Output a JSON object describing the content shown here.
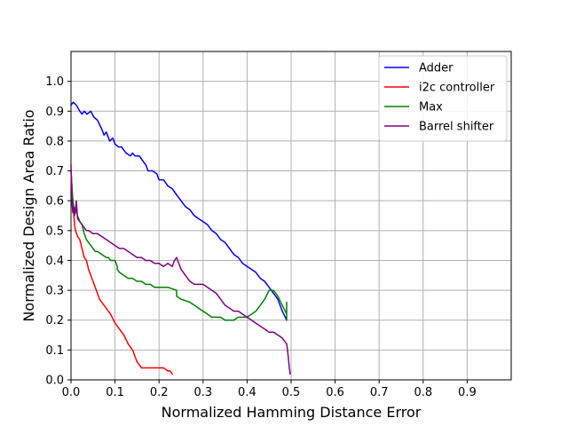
{
  "chart_data": {
    "type": "line",
    "title": "",
    "xlabel": "Normalized Hamming Distance Error",
    "ylabel": "Normalized Design Area Ratio",
    "xlim": [
      0,
      1.0
    ],
    "ylim": [
      0,
      1.1
    ],
    "xticks": [
      0.0,
      0.1,
      0.2,
      0.3,
      0.4,
      0.5,
      0.6,
      0.7,
      0.8,
      0.9
    ],
    "xtick_labels": [
      "0.0",
      "0.1",
      "0.2",
      "0.3",
      "0.4",
      "0.5",
      "0.6",
      "0.7",
      "0.8",
      "0.9"
    ],
    "yticks": [
      0.0,
      0.1,
      0.2,
      0.3,
      0.4,
      0.5,
      0.6,
      0.7,
      0.8,
      0.9,
      1.0
    ],
    "ytick_labels": [
      "0.0",
      "0.1",
      "0.2",
      "0.3",
      "0.4",
      "0.5",
      "0.6",
      "0.7",
      "0.8",
      "0.9",
      "1.0"
    ],
    "grid": true,
    "legend_position": "top-right",
    "series": [
      {
        "name": "Adder",
        "color": "#0000ff",
        "x": [
          0.0,
          0.005,
          0.012,
          0.02,
          0.025,
          0.03,
          0.036,
          0.045,
          0.052,
          0.06,
          0.07,
          0.075,
          0.08,
          0.088,
          0.095,
          0.1,
          0.108,
          0.115,
          0.125,
          0.135,
          0.14,
          0.145,
          0.155,
          0.165,
          0.17,
          0.175,
          0.185,
          0.195,
          0.2,
          0.21,
          0.22,
          0.23,
          0.24,
          0.25,
          0.26,
          0.27,
          0.28,
          0.29,
          0.3,
          0.31,
          0.32,
          0.33,
          0.34,
          0.35,
          0.36,
          0.37,
          0.38,
          0.39,
          0.4,
          0.41,
          0.42,
          0.43,
          0.44,
          0.45,
          0.46,
          0.47,
          0.48,
          0.49
        ],
        "y": [
          0.92,
          0.93,
          0.92,
          0.9,
          0.89,
          0.9,
          0.89,
          0.9,
          0.88,
          0.87,
          0.84,
          0.82,
          0.83,
          0.8,
          0.81,
          0.79,
          0.78,
          0.78,
          0.76,
          0.75,
          0.76,
          0.75,
          0.75,
          0.73,
          0.72,
          0.7,
          0.7,
          0.69,
          0.67,
          0.67,
          0.65,
          0.64,
          0.62,
          0.6,
          0.58,
          0.57,
          0.55,
          0.54,
          0.53,
          0.52,
          0.5,
          0.49,
          0.47,
          0.46,
          0.44,
          0.42,
          0.41,
          0.39,
          0.38,
          0.37,
          0.36,
          0.34,
          0.33,
          0.31,
          0.29,
          0.27,
          0.23,
          0.2
        ]
      },
      {
        "name": "i2c controller",
        "color": "#ff0000",
        "x": [
          0.0,
          0.002,
          0.004,
          0.006,
          0.008,
          0.01,
          0.015,
          0.02,
          0.025,
          0.03,
          0.035,
          0.04,
          0.045,
          0.05,
          0.055,
          0.06,
          0.065,
          0.07,
          0.08,
          0.09,
          0.1,
          0.11,
          0.12,
          0.13,
          0.14,
          0.145,
          0.15,
          0.155,
          0.16,
          0.17,
          0.18,
          0.19,
          0.2,
          0.21,
          0.22,
          0.225,
          0.23
        ],
        "y": [
          0.7,
          0.65,
          0.6,
          0.56,
          0.52,
          0.5,
          0.48,
          0.47,
          0.44,
          0.41,
          0.4,
          0.37,
          0.35,
          0.33,
          0.31,
          0.29,
          0.27,
          0.26,
          0.24,
          0.22,
          0.19,
          0.17,
          0.15,
          0.12,
          0.1,
          0.08,
          0.06,
          0.05,
          0.04,
          0.04,
          0.04,
          0.04,
          0.04,
          0.04,
          0.03,
          0.03,
          0.02
        ]
      },
      {
        "name": "Max",
        "color": "#008000",
        "x": [
          0.0,
          0.003,
          0.006,
          0.01,
          0.015,
          0.02,
          0.025,
          0.03,
          0.035,
          0.04,
          0.045,
          0.05,
          0.055,
          0.06,
          0.07,
          0.08,
          0.085,
          0.09,
          0.095,
          0.1,
          0.105,
          0.105,
          0.11,
          0.12,
          0.13,
          0.14,
          0.15,
          0.16,
          0.17,
          0.18,
          0.19,
          0.2,
          0.21,
          0.22,
          0.24,
          0.24,
          0.25,
          0.27,
          0.28,
          0.29,
          0.3,
          0.31,
          0.32,
          0.33,
          0.34,
          0.35,
          0.36,
          0.37,
          0.38,
          0.39,
          0.4,
          0.41,
          0.42,
          0.43,
          0.44,
          0.45,
          0.46,
          0.47,
          0.48,
          0.49,
          0.49,
          0.49
        ],
        "y": [
          0.7,
          0.62,
          0.58,
          0.57,
          0.55,
          0.53,
          0.52,
          0.49,
          0.47,
          0.46,
          0.45,
          0.44,
          0.43,
          0.43,
          0.42,
          0.41,
          0.41,
          0.4,
          0.4,
          0.4,
          0.38,
          0.37,
          0.36,
          0.35,
          0.34,
          0.34,
          0.33,
          0.33,
          0.32,
          0.32,
          0.31,
          0.31,
          0.31,
          0.31,
          0.3,
          0.28,
          0.27,
          0.26,
          0.25,
          0.24,
          0.23,
          0.22,
          0.21,
          0.21,
          0.21,
          0.2,
          0.2,
          0.2,
          0.21,
          0.21,
          0.21,
          0.22,
          0.23,
          0.25,
          0.27,
          0.3,
          0.3,
          0.28,
          0.25,
          0.22,
          0.26,
          0.2
        ]
      },
      {
        "name": "Barrel shifter",
        "color": "#800080",
        "x": [
          0.0,
          0.002,
          0.004,
          0.006,
          0.008,
          0.01,
          0.012,
          0.015,
          0.02,
          0.025,
          0.03,
          0.035,
          0.04,
          0.05,
          0.06,
          0.07,
          0.08,
          0.09,
          0.1,
          0.11,
          0.12,
          0.13,
          0.14,
          0.15,
          0.16,
          0.17,
          0.18,
          0.19,
          0.2,
          0.21,
          0.22,
          0.23,
          0.235,
          0.24,
          0.25,
          0.26,
          0.27,
          0.28,
          0.29,
          0.3,
          0.31,
          0.32,
          0.33,
          0.34,
          0.35,
          0.36,
          0.37,
          0.38,
          0.39,
          0.4,
          0.41,
          0.42,
          0.43,
          0.44,
          0.45,
          0.46,
          0.47,
          0.48,
          0.485,
          0.49,
          0.492,
          0.494,
          0.496,
          0.498
        ],
        "y": [
          0.72,
          0.6,
          0.56,
          0.58,
          0.55,
          0.57,
          0.6,
          0.54,
          0.53,
          0.52,
          0.51,
          0.5,
          0.5,
          0.49,
          0.49,
          0.48,
          0.47,
          0.46,
          0.45,
          0.44,
          0.44,
          0.43,
          0.42,
          0.41,
          0.41,
          0.4,
          0.4,
          0.39,
          0.39,
          0.38,
          0.39,
          0.38,
          0.4,
          0.41,
          0.37,
          0.35,
          0.33,
          0.32,
          0.32,
          0.32,
          0.31,
          0.3,
          0.29,
          0.27,
          0.25,
          0.24,
          0.23,
          0.23,
          0.22,
          0.21,
          0.2,
          0.19,
          0.18,
          0.17,
          0.16,
          0.16,
          0.15,
          0.14,
          0.13,
          0.12,
          0.1,
          0.07,
          0.04,
          0.02
        ]
      }
    ]
  }
}
